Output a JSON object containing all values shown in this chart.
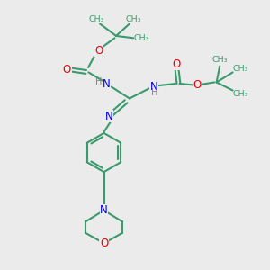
{
  "bg_color": "#ebebeb",
  "bond_color": "#3a9a6e",
  "N_color": "#0000ee",
  "O_color": "#ee0000",
  "H_color": "#808080",
  "lw": 1.5,
  "fig_w": 3.0,
  "fig_h": 3.0,
  "dpi": 100,
  "xlim": [
    0,
    10
  ],
  "ylim": [
    0,
    10
  ]
}
